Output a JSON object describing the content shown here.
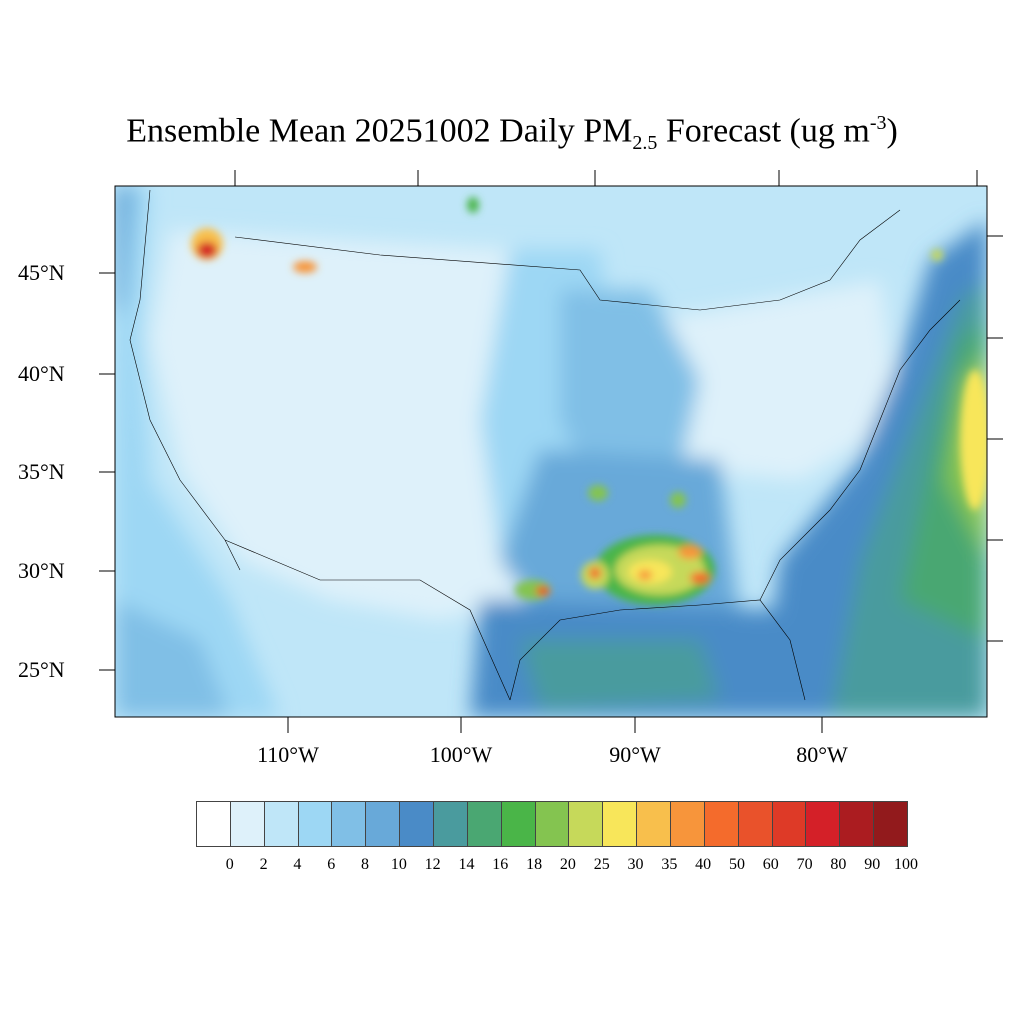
{
  "title": {
    "prefix": "Ensemble Mean 20251002 Daily PM",
    "subscript": "2.5",
    "middle": " Forecast (ug m",
    "superscript": "-3",
    "suffix": ")"
  },
  "map": {
    "lat_labels": [
      "45°N",
      "40°N",
      "35°N",
      "30°N",
      "25°N"
    ],
    "lon_labels": [
      "110°W",
      "100°W",
      "90°W",
      "80°W"
    ]
  },
  "colorbar": {
    "labels": [
      "0",
      "2",
      "4",
      "6",
      "8",
      "10",
      "12",
      "14",
      "16",
      "18",
      "20",
      "25",
      "30",
      "35",
      "40",
      "50",
      "60",
      "70",
      "80",
      "90",
      "100"
    ],
    "colors": [
      "#ffffff",
      "#def1fa",
      "#bfe6f8",
      "#9dd7f4",
      "#80bfe6",
      "#68a9d9",
      "#4a8bc7",
      "#4a9b9e",
      "#4aa772",
      "#4ab548",
      "#84c450",
      "#c6d95a",
      "#f8e65a",
      "#f8bf4c",
      "#f7953b",
      "#f46b2c",
      "#e9522b",
      "#de3a27",
      "#d42028",
      "#ab1c20",
      "#921a1c"
    ]
  }
}
